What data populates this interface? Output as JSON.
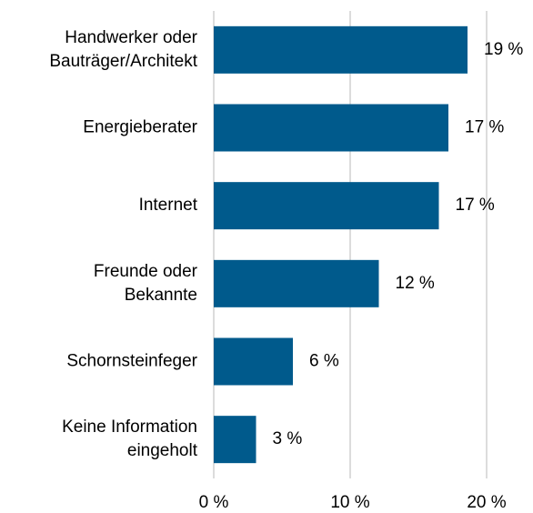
{
  "chart_data": {
    "type": "barh",
    "categories": [
      [
        "Handwerker oder",
        "Bauträger/Architekt"
      ],
      [
        "Energieberater"
      ],
      [
        "Internet"
      ],
      [
        "Freunde oder",
        "Bekannte"
      ],
      [
        "Schornsteinfeger"
      ],
      [
        "Keine Information",
        "eingeholt"
      ]
    ],
    "values": [
      18.6,
      17.2,
      16.5,
      12.1,
      5.8,
      3.1
    ],
    "value_labels": [
      "19 %",
      "17 %",
      "17 %",
      "12 %",
      "6 %",
      "3 %"
    ],
    "color": "#005a8c",
    "xlim": [
      0,
      20
    ],
    "xticks": [
      {
        "value": 0,
        "label": "0 %"
      },
      {
        "value": 10,
        "label": "10 %"
      },
      {
        "value": 20,
        "label": "20 %"
      }
    ],
    "grid": true
  }
}
